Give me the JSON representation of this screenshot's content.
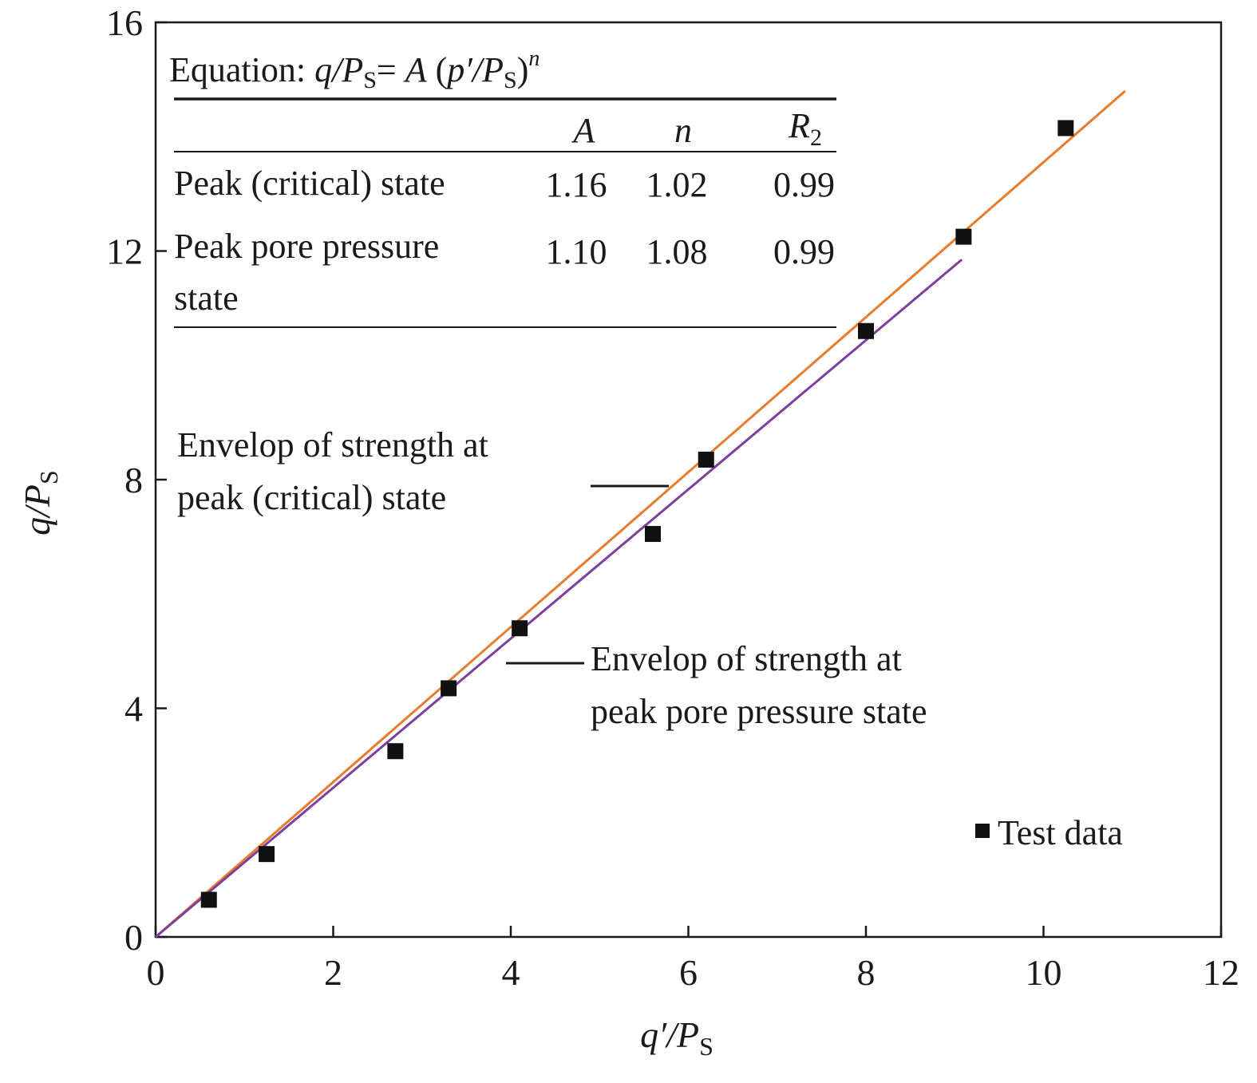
{
  "chart_data": {
    "type": "scatter",
    "xlabel": {
      "main": "q′/P",
      "sub": "S"
    },
    "ylabel": {
      "main": "q/P",
      "sub": "S"
    },
    "xlim": [
      0,
      12
    ],
    "ylim": [
      0,
      16
    ],
    "x_ticks": [
      0,
      2,
      4,
      6,
      8,
      10,
      12
    ],
    "y_ticks": [
      0,
      4,
      8,
      12,
      16
    ],
    "x_tick_labels": [
      "0",
      "2",
      "4",
      "6",
      "8",
      "10",
      "12"
    ],
    "y_tick_labels": [
      "0",
      "4",
      "8",
      "12",
      "16"
    ],
    "grid": false,
    "series": [
      {
        "name": "Test data",
        "kind": "points",
        "color": "#111111",
        "x": [
          0.6,
          1.25,
          2.7,
          3.3,
          4.1,
          5.6,
          6.2,
          8.0,
          9.1,
          10.25
        ],
        "y": [
          0.65,
          1.45,
          3.25,
          4.35,
          5.4,
          7.05,
          8.35,
          10.6,
          12.25,
          14.15
        ]
      },
      {
        "name": "Envelop of strength at peak (critical) state",
        "kind": "line",
        "color": "#e87b2c",
        "x": [
          0,
          10.92
        ],
        "y": [
          0,
          14.8
        ]
      },
      {
        "name": "Envelop of strength at peak pore pressure state",
        "kind": "line",
        "color": "#7b3fa0",
        "x": [
          0,
          9.08
        ],
        "y": [
          0,
          11.85
        ]
      }
    ],
    "annotations": {
      "critical": [
        "Envelop of strength at",
        "peak (critical) state"
      ],
      "pore": [
        "Envelop of strength at",
        "peak pore pressure state"
      ]
    },
    "legend": {
      "position": "bottom-right",
      "label": "Test data"
    }
  },
  "table": {
    "equation": {
      "prefix": "Equation: ",
      "q": "q",
      "slash_p": "/P",
      "sub_s": "S",
      "equals": "= ",
      "A": "A",
      "open": " (",
      "p": "p",
      "prime_slash_p": "′/P",
      "close": ")",
      "n": "n"
    },
    "headers": {
      "A": "A",
      "n": "n",
      "R": "R",
      "R_sub": "2"
    },
    "rows": [
      {
        "label_lines": [
          "Peak (critical) state"
        ],
        "A": "1.16",
        "n": "1.02",
        "R2": "0.99"
      },
      {
        "label_lines": [
          "Peak pore pressure",
          "state"
        ],
        "A": "1.10",
        "n": "1.08",
        "R2": "0.99"
      }
    ]
  }
}
